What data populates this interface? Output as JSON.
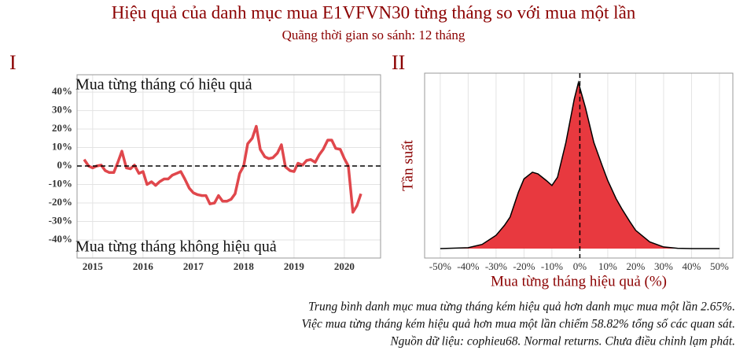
{
  "title": "Hiệu quả của danh mục mua E1VFVN30 từng tháng so với mua một lần",
  "subtitle": "Quãng thời gian so sánh: 12 tháng",
  "notes": [
    "Trung bình danh mục mua từng tháng kém hiệu quả hơn danh mục mua một lần 2.65%.",
    "Việc mua từng tháng kém hiệu quả hơn mua một lần chiếm 58.82% tổng số các quan sát.",
    "Nguồn dữ liệu: cophieu68. Normal returns. Chưa điều chỉnh lạm phát."
  ],
  "chart_data": [
    {
      "type": "line",
      "label": "I",
      "annotation_top": "Mua từng tháng có hiệu quả",
      "annotation_bottom": "Mua từng tháng không hiệu quả",
      "color": "#e0474c",
      "grid": true,
      "hline": 0,
      "x": [
        2014.83,
        2014.92,
        2015.0,
        2015.08,
        2015.17,
        2015.25,
        2015.33,
        2015.42,
        2015.5,
        2015.58,
        2015.67,
        2015.75,
        2015.83,
        2015.92,
        2016.0,
        2016.08,
        2016.17,
        2016.25,
        2016.33,
        2016.42,
        2016.5,
        2016.58,
        2016.67,
        2016.75,
        2016.83,
        2016.92,
        2017.0,
        2017.08,
        2017.17,
        2017.25,
        2017.33,
        2017.42,
        2017.5,
        2017.58,
        2017.67,
        2017.75,
        2017.83,
        2017.92,
        2018.0,
        2018.08,
        2018.17,
        2018.25,
        2018.33,
        2018.42,
        2018.5,
        2018.58,
        2018.67,
        2018.75,
        2018.83,
        2018.92,
        2019.0,
        2019.08,
        2019.17,
        2019.25,
        2019.33,
        2019.42,
        2019.5,
        2019.58,
        2019.67,
        2019.75,
        2019.83,
        2019.92,
        2020.0,
        2020.08,
        2020.17,
        2020.25,
        2020.33
      ],
      "values": [
        3.5,
        0,
        -1,
        0,
        0.5,
        -2.5,
        -3.5,
        -3.5,
        2,
        8,
        -1,
        -1.5,
        0.5,
        -4,
        -3,
        -10,
        -8.5,
        -10.5,
        -8.5,
        -7,
        -7,
        -5,
        -4,
        -3,
        -7,
        -12,
        -14.5,
        -15.5,
        -16,
        -16,
        -20.5,
        -20,
        -16,
        -19,
        -19,
        -18,
        -15,
        -4,
        0,
        12,
        15,
        21.5,
        9,
        5,
        4,
        4.5,
        7,
        11.5,
        -0.5,
        -2.5,
        -3,
        1.5,
        0.5,
        3,
        3.5,
        2,
        6,
        9,
        14,
        14,
        9.5,
        9,
        4,
        0,
        -25,
        -21.5,
        -15
      ],
      "xlim": [
        2014.69,
        2020.72
      ],
      "xticks": [
        2015,
        2016,
        2017,
        2018,
        2019,
        2020
      ],
      "ylim": [
        -49.8,
        49.4
      ],
      "yticks": [
        {
          "value": -40,
          "label": "-40%"
        },
        {
          "value": -30,
          "label": "-30%"
        },
        {
          "value": -20,
          "label": "-20%"
        },
        {
          "value": -10,
          "label": "-10%"
        },
        {
          "value": 0,
          "label": "0%"
        },
        {
          "value": 10,
          "label": "10%"
        },
        {
          "value": 20,
          "label": "20%"
        },
        {
          "value": 30,
          "label": "30%"
        },
        {
          "value": 40,
          "label": "40%"
        }
      ]
    },
    {
      "type": "area",
      "label": "II",
      "xlabel": "Mua từng tháng hiệu quả (%)",
      "ylabel": "Tần suất",
      "color": "#e8393f",
      "grid": true,
      "vline": 0,
      "x": [
        -50,
        -40,
        -35,
        -30,
        -27,
        -25,
        -22,
        -20,
        -17,
        -15,
        -12,
        -10,
        -8,
        -5,
        -2,
        -0.5,
        2,
        5,
        8,
        10,
        13,
        15,
        18,
        20,
        25,
        30,
        35,
        40,
        50
      ],
      "values": [
        0,
        0.005,
        0.025,
        0.08,
        0.14,
        0.19,
        0.34,
        0.42,
        0.46,
        0.45,
        0.41,
        0.38,
        0.43,
        0.64,
        0.9,
        1.0,
        0.85,
        0.64,
        0.5,
        0.41,
        0.3,
        0.24,
        0.16,
        0.11,
        0.04,
        0.01,
        0.002,
        0,
        0
      ],
      "xlim": [
        -55.6,
        54.8
      ],
      "xticks": [
        {
          "value": -50,
          "label": "-50%"
        },
        {
          "value": -40,
          "label": "-40%"
        },
        {
          "value": -30,
          "label": "-30%"
        },
        {
          "value": -20,
          "label": "-20%"
        },
        {
          "value": -10,
          "label": "-10%"
        },
        {
          "value": 0,
          "label": "0%"
        },
        {
          "value": 10,
          "label": "10%"
        },
        {
          "value": 20,
          "label": "20%"
        },
        {
          "value": 30,
          "label": "30%"
        },
        {
          "value": 40,
          "label": "40%"
        },
        {
          "value": 50,
          "label": "50%"
        }
      ],
      "ylim": [
        -0.057,
        1.057
      ]
    }
  ]
}
